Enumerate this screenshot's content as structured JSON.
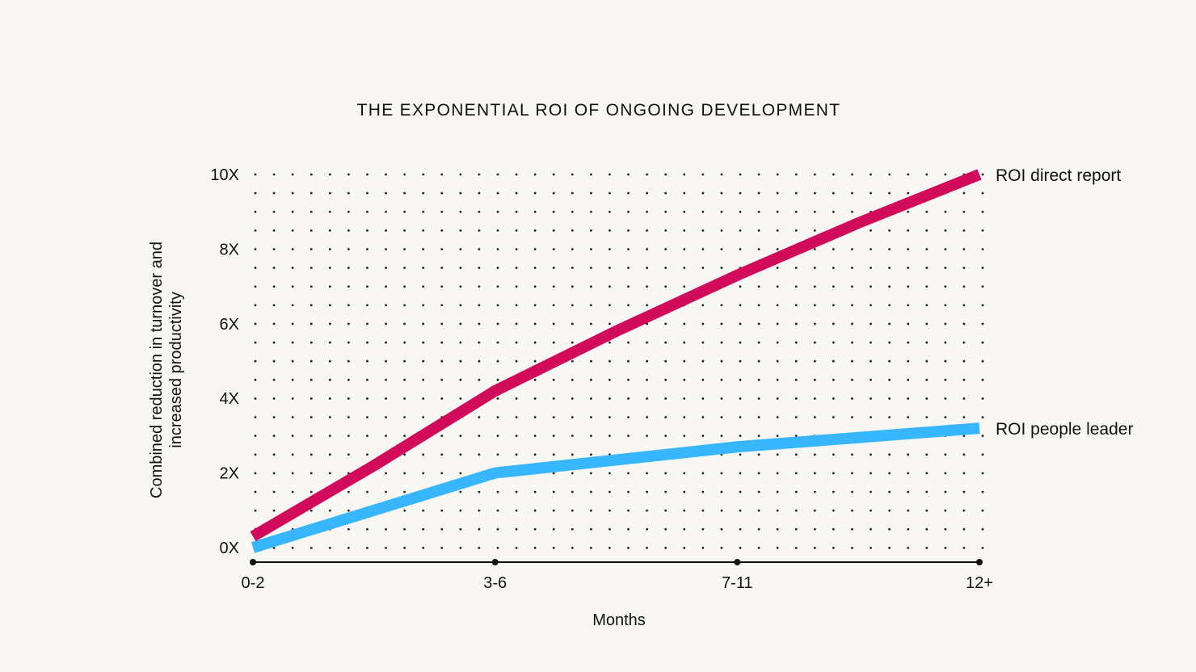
{
  "chart_data": {
    "type": "line",
    "title": "THE EXPONENTIAL ROI OF ONGOING DEVELOPMENT",
    "xlabel": "Months",
    "ylabel_lines": [
      "Combined reduction in turnover and",
      "increased productivity"
    ],
    "categories": [
      "0-2",
      "3-6",
      "7-11",
      "12+"
    ],
    "y_ticks": [
      {
        "value": 0,
        "label": "0X"
      },
      {
        "value": 2,
        "label": "2X"
      },
      {
        "value": 4,
        "label": "4X"
      },
      {
        "value": 6,
        "label": "6X"
      },
      {
        "value": 8,
        "label": "8X"
      },
      {
        "value": 10,
        "label": "10X"
      }
    ],
    "ylim": [
      0,
      10
    ],
    "grid": "dotted",
    "series": [
      {
        "name": "ROI direct report",
        "color": "#d10a5b",
        "points": [
          [
            0,
            0.3
          ],
          [
            0.5,
            2.2
          ],
          [
            1,
            4.2
          ],
          [
            1.5,
            5.8
          ],
          [
            2,
            7.3
          ],
          [
            2.5,
            8.7
          ],
          [
            3,
            10
          ]
        ]
      },
      {
        "name": "ROI people leader",
        "color": "#38b6ff",
        "points": [
          [
            0,
            0
          ],
          [
            0.5,
            1.0
          ],
          [
            1,
            2.0
          ],
          [
            1.5,
            2.35
          ],
          [
            2,
            2.7
          ],
          [
            2.5,
            2.95
          ],
          [
            3,
            3.2
          ]
        ]
      }
    ]
  }
}
